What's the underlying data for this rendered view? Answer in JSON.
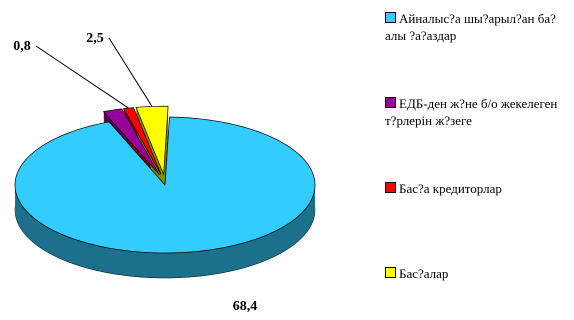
{
  "chart_data": {
    "type": "pie3d",
    "categories": [
      "Айналыс?а шы?арыл?ан ба?алы ?а?аздар",
      "ЕДБ-ден ж?не б/о жекелеген т?рлерін ж?зеге",
      "Бас?а кредиторлар",
      "Бас?алар"
    ],
    "values": [
      68.4,
      1.5,
      0.8,
      2.5
    ],
    "value_labels": [
      "68,4",
      null,
      "0,8",
      "2,5"
    ],
    "colors": [
      "#33ccff",
      "#990099",
      "#ff0000",
      "#ffff00"
    ],
    "legend": "right"
  }
}
